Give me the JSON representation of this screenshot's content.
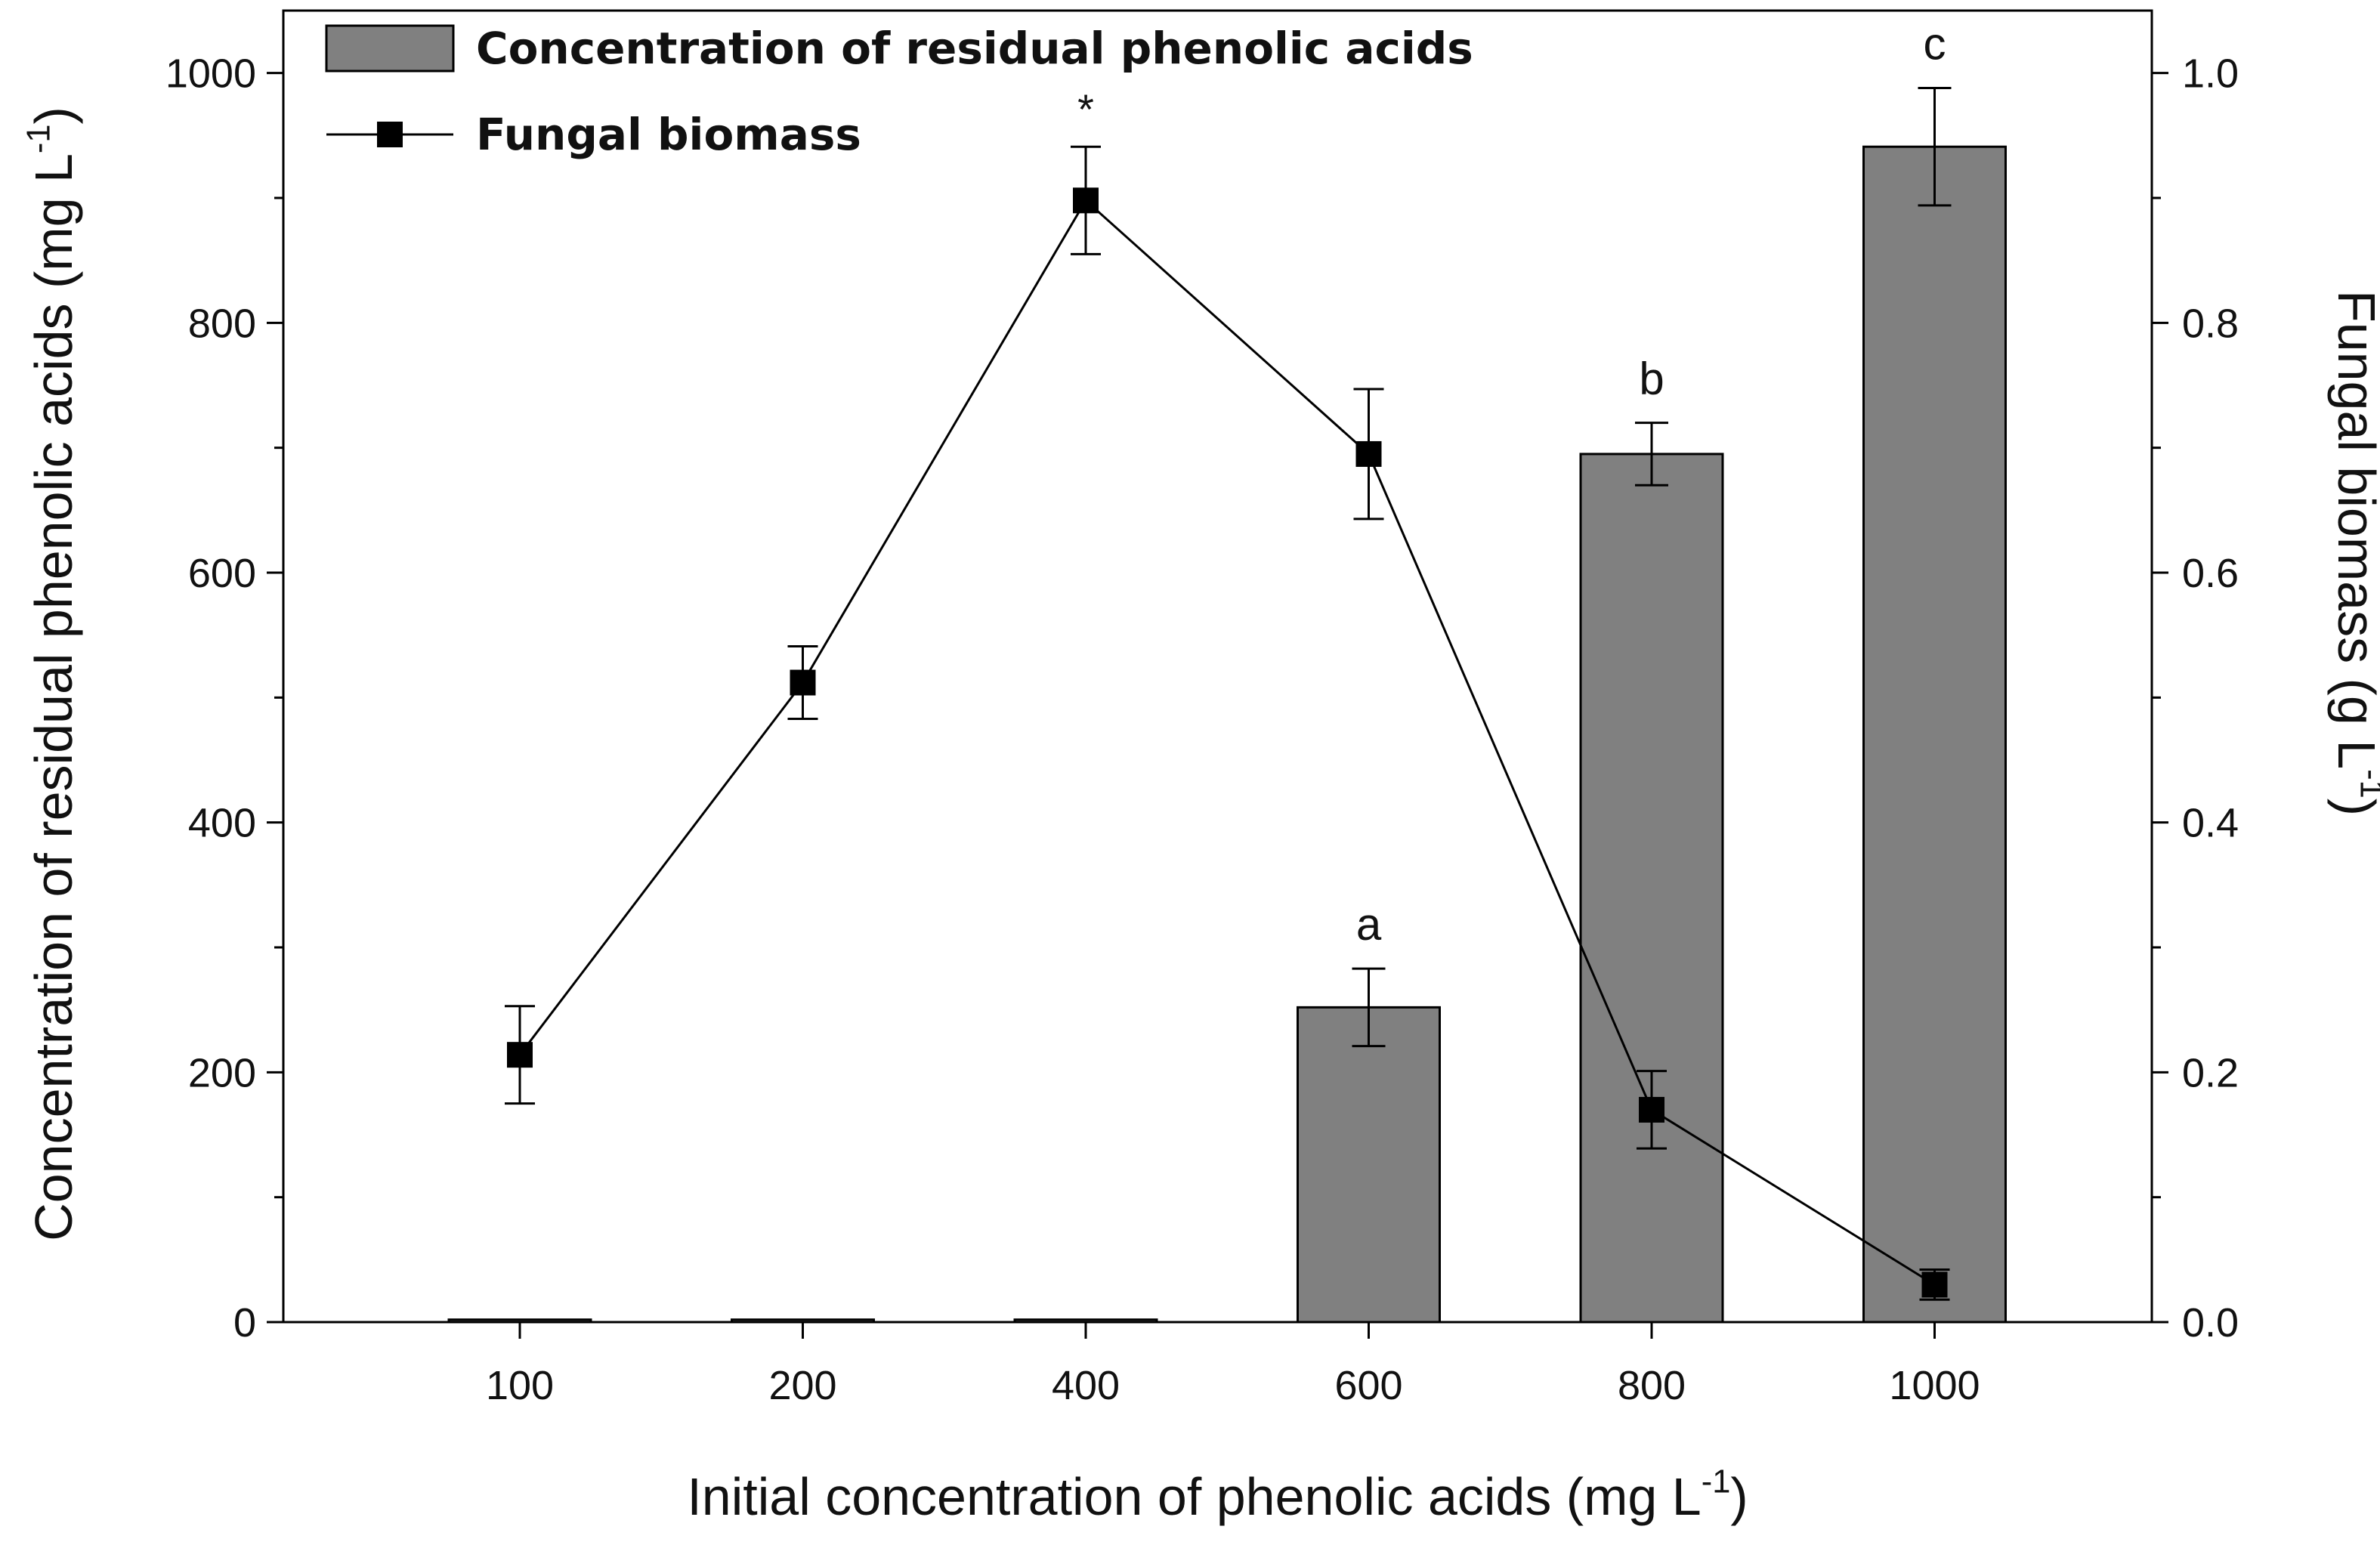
{
  "chart_data": {
    "type": "bar+line",
    "categories": [
      "100",
      "200",
      "400",
      "600",
      "800",
      "1000"
    ],
    "xlabel": {
      "text": "Initial concentration of phenolic acids (mg L",
      "sup": "-1",
      "close": ")"
    },
    "ylabel_left": {
      "text": "Concentration of residual phenolic acids (mg L",
      "sup": "-1",
      "close": ")"
    },
    "ylabel_right": {
      "text": "Fungal biomass (g L",
      "sup": "-1",
      "close": ")"
    },
    "y_left": {
      "min": 0,
      "max": 1050,
      "ticks": [
        0,
        200,
        400,
        600,
        800,
        1000
      ],
      "tick_labels": [
        "0",
        "200",
        "400",
        "600",
        "800",
        "1000"
      ]
    },
    "y_right": {
      "min": 0,
      "max": 1.05,
      "ticks": [
        0.0,
        0.2,
        0.4,
        0.6,
        0.8,
        1.0
      ],
      "tick_labels": [
        "0.0",
        "0.2",
        "0.4",
        "0.6",
        "0.8",
        "1.0"
      ]
    },
    "series": [
      {
        "name": "Concentration of residual phenolic acids",
        "type": "bar",
        "axis": "left",
        "color": "#808080",
        "values": [
          2,
          2,
          2,
          252,
          695,
          941
        ],
        "errors": [
          0,
          0,
          0,
          31,
          25,
          47
        ]
      },
      {
        "name": "Fungal biomass",
        "type": "line",
        "axis": "right",
        "color": "#000000",
        "values": [
          0.214,
          0.512,
          0.898,
          0.695,
          0.17,
          0.03
        ],
        "errors": [
          0.039,
          0.029,
          0.043,
          0.052,
          0.031,
          0.012
        ]
      }
    ],
    "annotations": [
      {
        "category": "400",
        "text": "*"
      },
      {
        "category": "600",
        "text": "a"
      },
      {
        "category": "800",
        "text": "b"
      },
      {
        "category": "1000",
        "text": "c"
      }
    ],
    "legend": {
      "placement": "top-left"
    },
    "grid": false
  }
}
